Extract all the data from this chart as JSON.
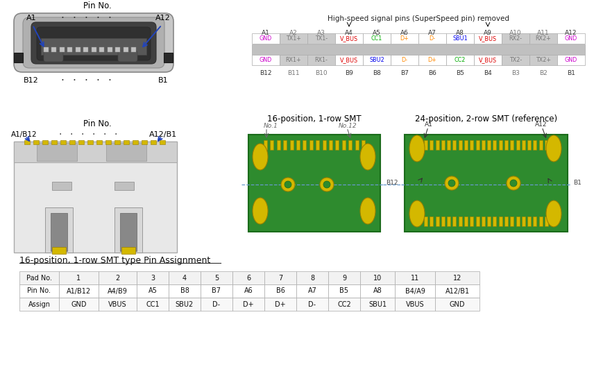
{
  "title": "High-speed signal pins (SuperSpeed pin) removed",
  "bg_color": "#ffffff",
  "pin_table_top_labels": [
    "A1",
    "A2",
    "A3",
    "A4",
    "A5",
    "A6",
    "A7",
    "A8",
    "A9",
    "A10",
    "A11",
    "A12"
  ],
  "pin_table_bot_labels": [
    "B12",
    "B11",
    "B10",
    "B9",
    "B8",
    "B7",
    "B6",
    "B5",
    "B4",
    "B3",
    "B2",
    "B1"
  ],
  "row_a_signals": [
    "GND",
    "TX1+",
    "TX1-",
    "V_BUS",
    "CC1",
    "D+",
    "D-",
    "SBU1",
    "V_BUS",
    "RX2-",
    "RX2+",
    "GND"
  ],
  "row_b_signals": [
    "GND",
    "RX1+",
    "RX1-",
    "V_BUS",
    "SBU2",
    "D-",
    "D+",
    "CC2",
    "V_BUS",
    "TX2-",
    "TX2+",
    "GND"
  ],
  "row_a_colors": [
    "#cc00cc",
    "#777777",
    "#777777",
    "#dd0000",
    "#00aa00",
    "#ff8800",
    "#ff8800",
    "#0000ee",
    "#dd0000",
    "#777777",
    "#777777",
    "#cc00cc"
  ],
  "row_b_colors": [
    "#cc00cc",
    "#777777",
    "#777777",
    "#dd0000",
    "#0000ee",
    "#ff8800",
    "#ff8800",
    "#00aa00",
    "#dd0000",
    "#777777",
    "#777777",
    "#cc00cc"
  ],
  "row_a_bg": [
    "#ffffff",
    "#cccccc",
    "#cccccc",
    "#ffffff",
    "#ffffff",
    "#ffffff",
    "#ffffff",
    "#ffffff",
    "#ffffff",
    "#cccccc",
    "#cccccc",
    "#ffffff"
  ],
  "row_b_bg": [
    "#ffffff",
    "#cccccc",
    "#cccccc",
    "#ffffff",
    "#ffffff",
    "#ffffff",
    "#ffffff",
    "#ffffff",
    "#ffffff",
    "#cccccc",
    "#cccccc",
    "#ffffff"
  ],
  "smt_title1": "16-position, 1-row SMT",
  "smt_title2": "24-position, 2-row SMT (reference)",
  "table_title": "16-position, 1-row SMT type Pin Assignment",
  "table_headers": [
    "Pad No.",
    "1",
    "2",
    "3",
    "4",
    "5",
    "6",
    "7",
    "8",
    "9",
    "10",
    "11",
    "12"
  ],
  "table_row1": [
    "Pin No.",
    "A1/B12",
    "A4/B9",
    "A5",
    "B8",
    "B7",
    "A6",
    "B6",
    "A7",
    "B5",
    "A8",
    "B4/A9",
    "A12/B1"
  ],
  "table_row2": [
    "Assign",
    "GND",
    "VBUS",
    "CC1",
    "SBU2",
    "D-",
    "D+",
    "D+",
    "D-",
    "CC2",
    "SBU1",
    "VBUS",
    "GND"
  ],
  "green_board": "#2e8b2e",
  "green_dark": "#1a6b1a",
  "gold_pad": "#d4b800",
  "gold_dark": "#9a8000"
}
